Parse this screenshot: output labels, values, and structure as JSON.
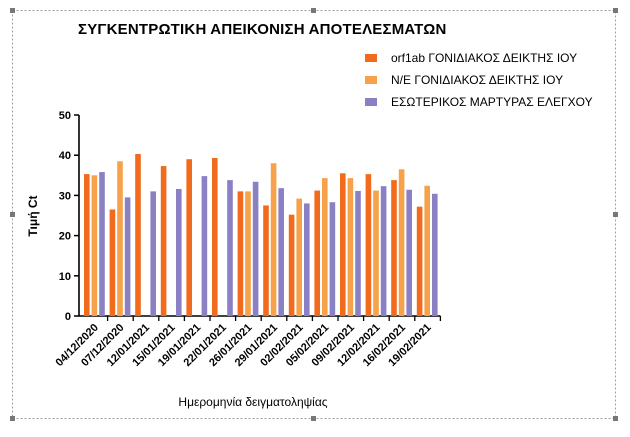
{
  "chart_data": {
    "type": "bar",
    "title": "ΣΥΓΚΕΝΤΡΩΤΙΚΗ ΑΠΕΙΚΟΝΙΣΗ ΑΠΟΤΕΛΕΣΜΑΤΩΝ",
    "xlabel": "Ημερομηνία δειγματοληψίας",
    "ylabel": "Τιμή Ct",
    "ylim": [
      0,
      50
    ],
    "yticks": [
      "0",
      "10",
      "20",
      "30",
      "40",
      "50"
    ],
    "legend_position": "top-right",
    "categories": [
      "04/12/2020",
      "07/12/2020",
      "12/01/2021",
      "15/01/2021",
      "19/01/2021",
      "22/01/2021",
      "26/01/2021",
      "29/01/2021",
      "02/02/2021",
      "05/02/2021",
      "09/02/2021",
      "12/02/2021",
      "16/02/2021",
      "19/02/2021"
    ],
    "series": [
      {
        "name": "orf1ab ΓΟΝΙΔΙΑΚΟΣ ΔΕΙΚΤΗΣ ΙΟΥ",
        "color": "#f26a1b",
        "values": [
          35.3,
          26.5,
          40.3,
          37.3,
          39.0,
          39.3,
          31.0,
          27.5,
          25.2,
          31.2,
          35.5,
          35.3,
          33.8,
          27.2
        ]
      },
      {
        "name": "N/E ΓΟΝΙΔΙΑΚΟΣ ΔΕΙΚΤΗΣ ΙΟΥ",
        "color": "#f7a24a",
        "values": [
          35.0,
          38.5,
          null,
          null,
          null,
          null,
          31.0,
          38.0,
          29.2,
          34.3,
          34.3,
          31.2,
          36.5,
          32.4
        ]
      },
      {
        "name": "ΕΣΩΤΕΡΙΚΟΣ ΜΑΡΤΥΡΑΣ ΕΛΕΓΧΟΥ",
        "color": "#8a80c4",
        "values": [
          35.8,
          29.5,
          31.0,
          31.6,
          34.8,
          33.8,
          33.4,
          31.8,
          28.0,
          28.3,
          31.1,
          32.3,
          31.4,
          30.4
        ]
      }
    ]
  }
}
